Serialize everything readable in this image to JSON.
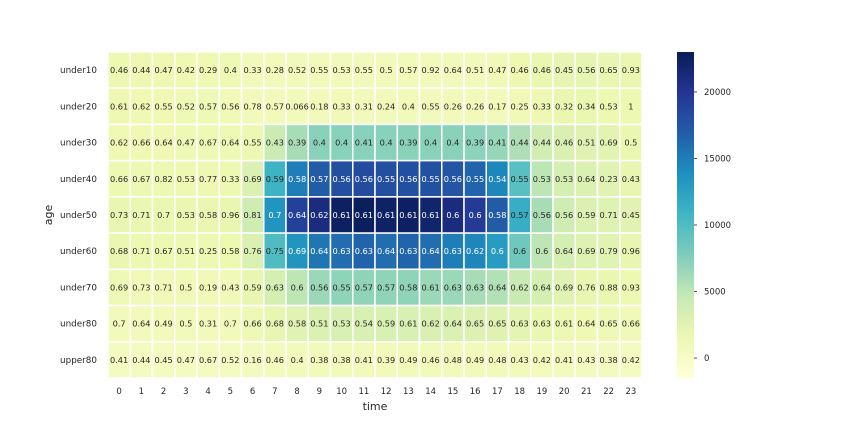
{
  "chart_data": {
    "type": "heatmap",
    "title": "",
    "xlabel": "time",
    "ylabel": "age",
    "colormap": "YlGnBu",
    "x_categories": [
      "0",
      "1",
      "2",
      "3",
      "4",
      "5",
      "6",
      "7",
      "8",
      "9",
      "10",
      "11",
      "12",
      "13",
      "14",
      "15",
      "16",
      "17",
      "18",
      "19",
      "20",
      "21",
      "22",
      "23"
    ],
    "y_categories": [
      "under10",
      "under20",
      "under30",
      "under40",
      "under50",
      "under60",
      "under70",
      "under80",
      "upper80"
    ],
    "color_values": [
      [
        1500,
        1400,
        1400,
        1300,
        1300,
        1200,
        900,
        900,
        800,
        900,
        900,
        800,
        900,
        800,
        800,
        900,
        900,
        1100,
        1400,
        1800,
        2100,
        2100,
        1900,
        1700
      ],
      [
        1400,
        1300,
        1300,
        1200,
        1200,
        1100,
        900,
        900,
        900,
        900,
        1000,
        900,
        900,
        800,
        800,
        800,
        800,
        900,
        1100,
        1400,
        1700,
        1800,
        1600,
        1500
      ],
      [
        1300,
        1300,
        1300,
        1200,
        1200,
        1200,
        1500,
        4300,
        6000,
        7200,
        7300,
        7300,
        7300,
        7200,
        7200,
        7200,
        7100,
        6700,
        5700,
        3800,
        3100,
        2700,
        2400,
        1800
      ],
      [
        1600,
        1500,
        1500,
        1400,
        1400,
        1500,
        3000,
        11000,
        15000,
        17000,
        18000,
        18200,
        18000,
        18000,
        17800,
        17500,
        16500,
        14500,
        9500,
        5000,
        3500,
        3000,
        2500,
        2000
      ],
      [
        1900,
        1800,
        1800,
        1700,
        1700,
        2000,
        4000,
        13500,
        19000,
        21000,
        22500,
        22800,
        22300,
        22500,
        22000,
        21000,
        19500,
        17000,
        11500,
        6000,
        4000,
        3000,
        2800,
        2500
      ],
      [
        1700,
        1600,
        1600,
        1500,
        1500,
        1600,
        3000,
        10000,
        13500,
        15500,
        16000,
        16500,
        16000,
        16500,
        16000,
        15000,
        14500,
        13000,
        8500,
        5000,
        3500,
        2800,
        2500,
        2000
      ],
      [
        1200,
        1100,
        1100,
        1100,
        1000,
        1100,
        2000,
        3500,
        5000,
        6500,
        7000,
        7000,
        7000,
        7000,
        6500,
        6500,
        6000,
        5500,
        4500,
        3500,
        2500,
        2000,
        1800,
        1500
      ],
      [
        900,
        900,
        900,
        900,
        900,
        900,
        1200,
        2000,
        2500,
        3000,
        3200,
        3200,
        3200,
        3200,
        3100,
        3000,
        2900,
        2700,
        2300,
        1800,
        1500,
        1300,
        1200,
        1100
      ],
      [
        400,
        400,
        400,
        400,
        400,
        400,
        500,
        700,
        800,
        900,
        900,
        900,
        900,
        900,
        900,
        900,
        900,
        800,
        800,
        700,
        600,
        500,
        500,
        400
      ]
    ],
    "annotations": [
      [
        "0.46",
        "0.44",
        "0.47",
        "0.42",
        "0.29",
        "0.4",
        "0.33",
        "0.28",
        "0.52",
        "0.55",
        "0.53",
        "0.55",
        "0.5",
        "0.57",
        "0.92",
        "0.64",
        "0.51",
        "0.47",
        "0.46",
        "0.46",
        "0.45",
        "0.56",
        "0.65",
        "0.93"
      ],
      [
        "0.61",
        "0.62",
        "0.55",
        "0.52",
        "0.57",
        "0.56",
        "0.78",
        "0.57",
        "0.066",
        "0.18",
        "0.33",
        "0.31",
        "0.24",
        "0.4",
        "0.55",
        "0.26",
        "0.26",
        "0.17",
        "0.25",
        "0.33",
        "0.32",
        "0.34",
        "0.53",
        "1"
      ],
      [
        "0.62",
        "0.66",
        "0.64",
        "0.47",
        "0.67",
        "0.64",
        "0.55",
        "0.43",
        "0.39",
        "0.4",
        "0.4",
        "0.41",
        "0.4",
        "0.39",
        "0.4",
        "0.4",
        "0.39",
        "0.41",
        "0.44",
        "0.44",
        "0.46",
        "0.51",
        "0.69",
        "0.5"
      ],
      [
        "0.66",
        "0.67",
        "0.82",
        "0.53",
        "0.77",
        "0.33",
        "0.69",
        "0.59",
        "0.58",
        "0.57",
        "0.56",
        "0.56",
        "0.55",
        "0.56",
        "0.55",
        "0.56",
        "0.55",
        "0.54",
        "0.55",
        "0.53",
        "0.53",
        "0.64",
        "0.23",
        "0.43"
      ],
      [
        "0.73",
        "0.71",
        "0.7",
        "0.53",
        "0.58",
        "0.96",
        "0.81",
        "0.7",
        "0.64",
        "0.62",
        "0.61",
        "0.61",
        "0.61",
        "0.61",
        "0.61",
        "0.6",
        "0.6",
        "0.58",
        "0.57",
        "0.56",
        "0.56",
        "0.59",
        "0.71",
        "0.45"
      ],
      [
        "0.68",
        "0.71",
        "0.67",
        "0.51",
        "0.25",
        "0.58",
        "0.76",
        "0.75",
        "0.69",
        "0.64",
        "0.63",
        "0.63",
        "0.64",
        "0.63",
        "0.64",
        "0.63",
        "0.62",
        "0.6",
        "0.6",
        "0.6",
        "0.64",
        "0.69",
        "0.79",
        "0.96"
      ],
      [
        "0.69",
        "0.73",
        "0.71",
        "0.5",
        "0.19",
        "0.43",
        "0.59",
        "0.63",
        "0.6",
        "0.56",
        "0.55",
        "0.57",
        "0.57",
        "0.58",
        "0.61",
        "0.63",
        "0.63",
        "0.64",
        "0.62",
        "0.64",
        "0.69",
        "0.76",
        "0.88",
        "0.93"
      ],
      [
        "0.7",
        "0.64",
        "0.49",
        "0.5",
        "0.31",
        "0.7",
        "0.66",
        "0.68",
        "0.58",
        "0.51",
        "0.53",
        "0.54",
        "0.59",
        "0.61",
        "0.62",
        "0.64",
        "0.65",
        "0.65",
        "0.63",
        "0.63",
        "0.61",
        "0.64",
        "0.65",
        "0.66"
      ],
      [
        "0.41",
        "0.44",
        "0.45",
        "0.47",
        "0.67",
        "0.52",
        "0.16",
        "0.46",
        "0.4",
        "0.38",
        "0.38",
        "0.41",
        "0.39",
        "0.49",
        "0.46",
        "0.48",
        "0.49",
        "0.48",
        "0.43",
        "0.42",
        "0.41",
        "0.43",
        "0.38",
        "0.42"
      ]
    ],
    "colorbar": {
      "min": -1500,
      "max": 23000,
      "ticks": [
        0,
        5000,
        10000,
        15000,
        20000
      ],
      "tick_labels": [
        "0",
        "5000",
        "10000",
        "15000",
        "20000"
      ]
    }
  }
}
